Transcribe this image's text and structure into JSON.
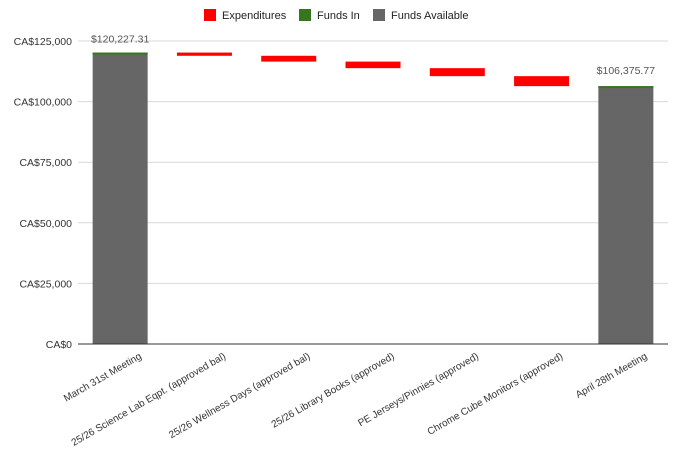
{
  "chart_data": {
    "type": "waterfall",
    "title": "",
    "xlabel": "",
    "ylabel": "",
    "ylim": [
      0,
      125000
    ],
    "yticks": [
      0,
      25000,
      50000,
      75000,
      100000,
      125000
    ],
    "ytick_labels": [
      "CA$0",
      "CA$25,000",
      "CA$50,000",
      "CA$75,000",
      "CA$100,000",
      "CA$125,000"
    ],
    "grid": true,
    "legend_position": "top",
    "legend": [
      {
        "name": "Expenditures",
        "color": "#ff0000"
      },
      {
        "name": "Funds In",
        "color": "#38761d"
      },
      {
        "name": "Funds Available",
        "color": "#666666"
      }
    ],
    "categories": [
      "March 31st Meeting",
      "25/26 Science Lab Eqpt. (approved bal)",
      "25/26 Wellness Days (approved bal)",
      "25/26 Library Books (approved)",
      "PE Jerseys/Pinnies (approved)",
      "Chrome Cube Monitors (approved)",
      "April 28th Meeting"
    ],
    "bars": [
      {
        "kind": "total",
        "start": 0,
        "end": 120227.31,
        "label": "$120,227.31"
      },
      {
        "kind": "expenditure",
        "start": 120227.31,
        "end": 118900
      },
      {
        "kind": "expenditure",
        "start": 118900,
        "end": 116500
      },
      {
        "kind": "expenditure",
        "start": 116500,
        "end": 113800
      },
      {
        "kind": "expenditure",
        "start": 113800,
        "end": 110500
      },
      {
        "kind": "expenditure",
        "start": 110500,
        "end": 106375.77
      },
      {
        "kind": "total",
        "start": 0,
        "end": 106375.77,
        "label": "$106,375.77"
      }
    ]
  }
}
